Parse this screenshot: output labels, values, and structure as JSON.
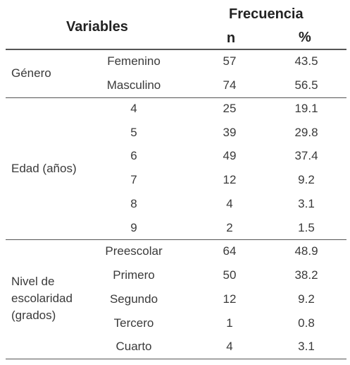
{
  "header": {
    "variables": "Variables",
    "frecuencia": "Frecuencia",
    "n": "n",
    "pct": "%"
  },
  "groups": [
    {
      "label": "Género",
      "rows": [
        {
          "category": "Femenino",
          "n": "57",
          "pct": "43.5"
        },
        {
          "category": "Masculino",
          "n": "74",
          "pct": "56.5"
        }
      ]
    },
    {
      "label": "Edad (años)",
      "rows": [
        {
          "category": "4",
          "n": "25",
          "pct": "19.1"
        },
        {
          "category": "5",
          "n": "39",
          "pct": "29.8"
        },
        {
          "category": "6",
          "n": "49",
          "pct": "37.4"
        },
        {
          "category": "7",
          "n": "12",
          "pct": "9.2"
        },
        {
          "category": "8",
          "n": "4",
          "pct": "3.1"
        },
        {
          "category": "9",
          "n": "2",
          "pct": "1.5"
        }
      ]
    },
    {
      "label_lines": [
        "Nivel de",
        "escolaridad",
        "(grados)"
      ],
      "rows": [
        {
          "category": "Preescolar",
          "n": "64",
          "pct": "48.9"
        },
        {
          "category": "Primero",
          "n": "50",
          "pct": "38.2"
        },
        {
          "category": "Segundo",
          "n": "12",
          "pct": "9.2"
        },
        {
          "category": "Tercero",
          "n": "1",
          "pct": "0.8"
        },
        {
          "category": "Cuarto",
          "n": "4",
          "pct": "3.1"
        }
      ]
    }
  ]
}
